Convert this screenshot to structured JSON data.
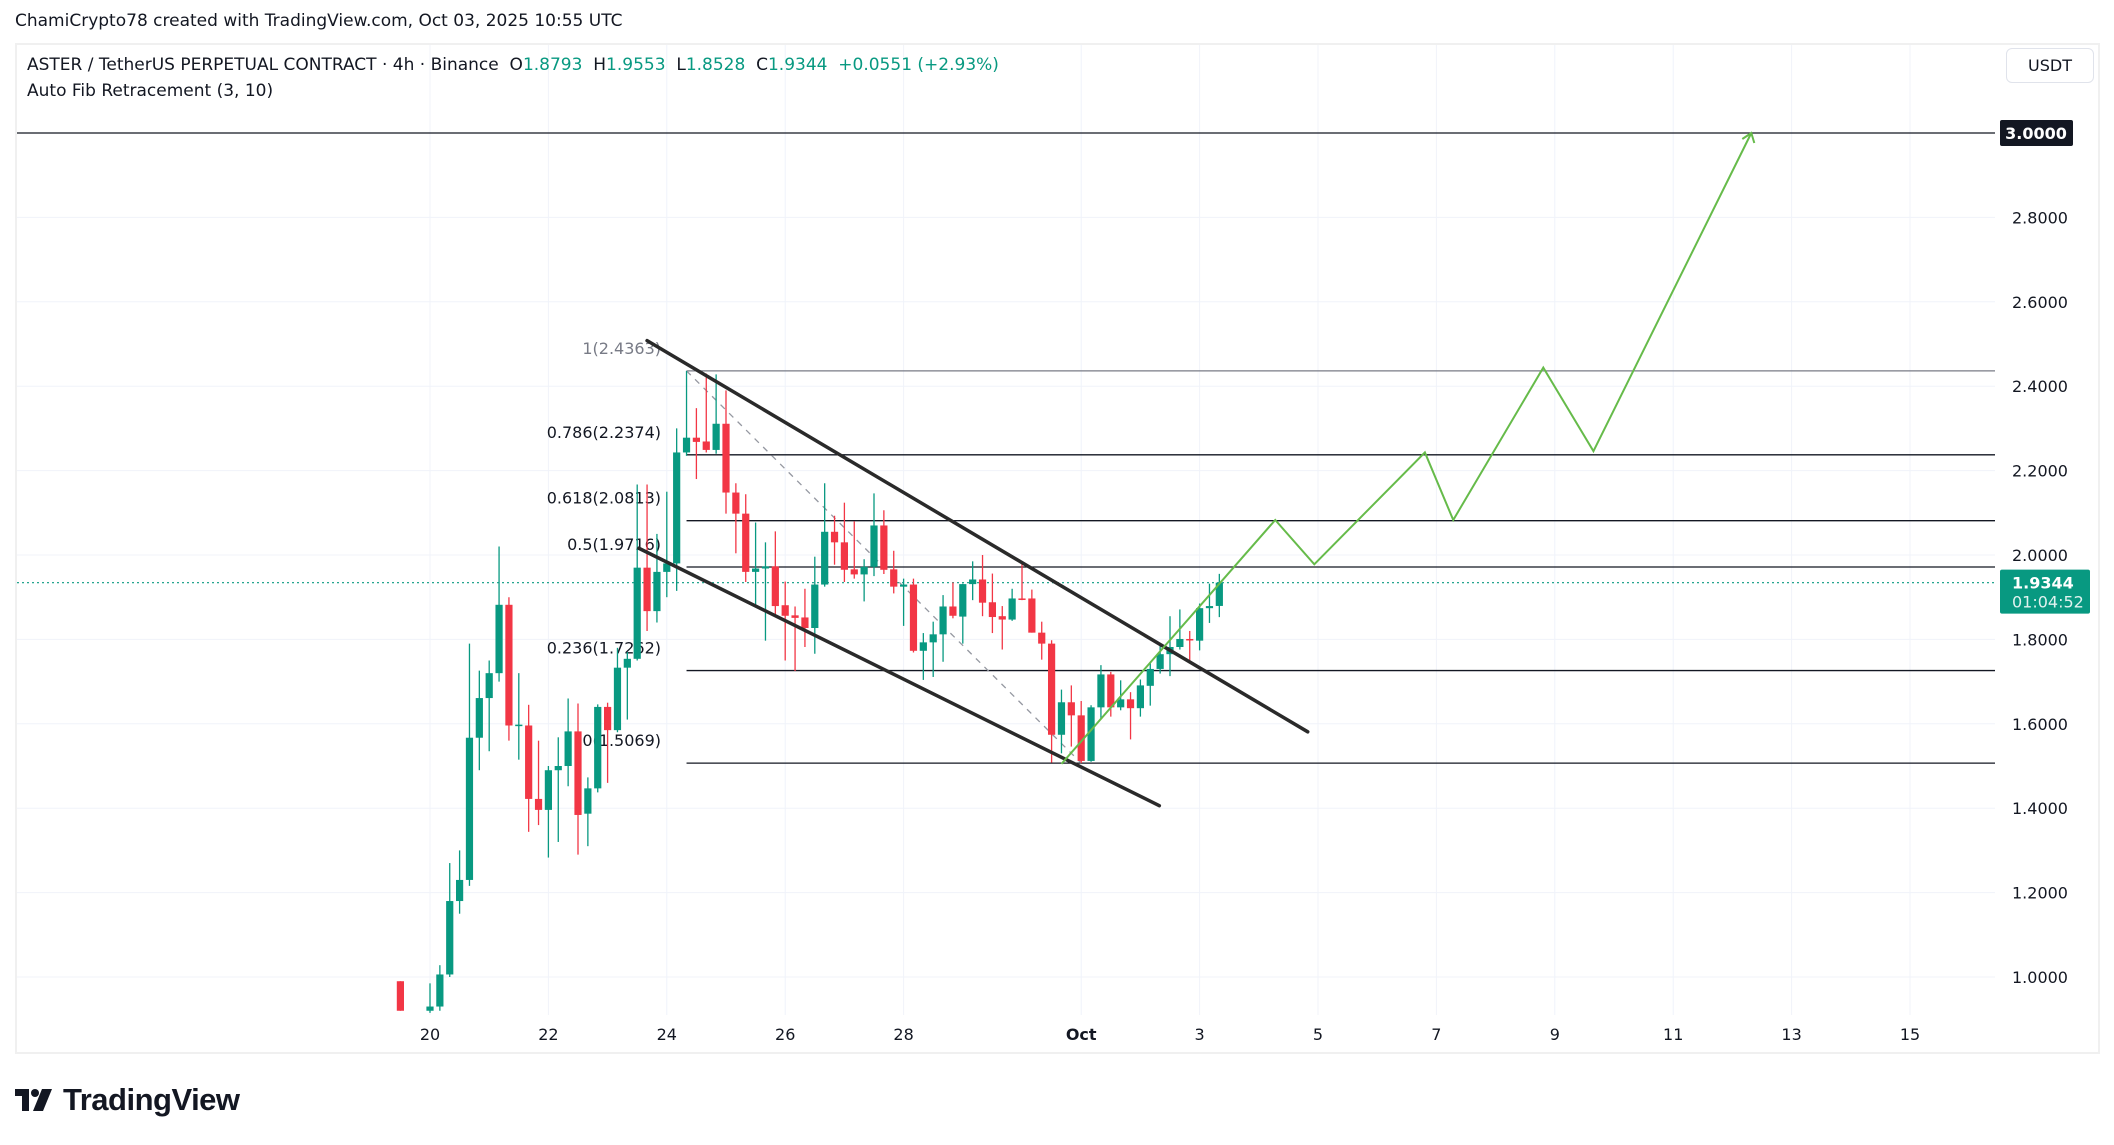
{
  "credit": "ChamiCrypto78 created with TradingView.com, Oct 03, 2025 10:55 UTC",
  "legend": {
    "symbol": "ASTER / TetherUS PERPETUAL CONTRACT · 4h · Binance",
    "o_label": "O",
    "o": "1.8793",
    "h_label": "H",
    "h": "1.9553",
    "l_label": "L",
    "l": "1.8528",
    "c_label": "C",
    "c": "1.9344",
    "change": "+0.0551 (+2.93%)",
    "indicator": "Auto Fib Retracement (3, 10)"
  },
  "currency_button": "USDT",
  "logo_text": "TradingView",
  "colors": {
    "up": "#089981",
    "down": "#f23645",
    "projection": "#66bb4a",
    "channel": "#2a2a2a",
    "fib": "#131722",
    "fib_top": "#787b86"
  },
  "chart_data": {
    "type": "candlestick",
    "price_axis": {
      "min": 0.82,
      "max": 3.1,
      "ticks": [
        "1.0000",
        "1.2000",
        "1.4000",
        "1.6000",
        "1.8000",
        "2.0000",
        "2.2000",
        "2.4000",
        "2.6000",
        "2.8000"
      ],
      "grid": true
    },
    "time_axis": {
      "ticks": [
        {
          "label": "20",
          "date": "2025-09-20 00:00"
        },
        {
          "label": "22",
          "date": "2025-09-22 00:00"
        },
        {
          "label": "24",
          "date": "2025-09-24 00:00"
        },
        {
          "label": "26",
          "date": "2025-09-26 00:00"
        },
        {
          "label": "28",
          "date": "2025-09-28 00:00"
        },
        {
          "label": "Oct",
          "date": "2025-10-01 00:00"
        },
        {
          "label": "3",
          "date": "2025-10-03 00:00"
        },
        {
          "label": "5",
          "date": "2025-10-05 00:00"
        },
        {
          "label": "7",
          "date": "2025-10-07 00:00"
        },
        {
          "label": "9",
          "date": "2025-10-09 00:00"
        },
        {
          "label": "11",
          "date": "2025-10-11 00:00"
        },
        {
          "label": "13",
          "date": "2025-10-13 00:00"
        },
        {
          "label": "15",
          "date": "2025-10-15 00:00"
        }
      ]
    },
    "current_price": {
      "value": 1.9344,
      "label": "1.9344",
      "countdown": "01:04:52"
    },
    "target": {
      "value": 3.0,
      "label": "3.0000"
    },
    "fib": {
      "start": "2025-09-24 08:00",
      "levels": [
        {
          "ratio": "1",
          "price": 2.4363,
          "label": "1(2.4363)"
        },
        {
          "ratio": "0.786",
          "price": 2.2374,
          "label": "0.786(2.2374)"
        },
        {
          "ratio": "0.618",
          "price": 2.0813,
          "label": "0.618(2.0813)"
        },
        {
          "ratio": "0.5",
          "price": 1.9716,
          "label": "0.5(1.9716)"
        },
        {
          "ratio": "0.236",
          "price": 1.7262,
          "label": "0.236(1.7262)"
        },
        {
          "ratio": "0",
          "price": 1.5069,
          "label": "0(1.5069)"
        }
      ],
      "trend_line": [
        [
          "2025-09-24 08:00",
          2.4363
        ],
        [
          "2025-10-01 00:00",
          1.5069
        ]
      ]
    },
    "channel_upper": [
      [
        "2025-09-23 16:00",
        2.508
      ],
      [
        "2025-10-04 19:50",
        1.581
      ]
    ],
    "channel_lower": [
      [
        "2025-09-23 12:40",
        2.016
      ],
      [
        "2025-10-02 07:40",
        1.406
      ]
    ],
    "projection": [
      [
        "2025-09-30 16:00",
        1.505
      ],
      [
        "2025-10-04 06:40",
        2.083
      ],
      [
        "2025-10-04 22:30",
        1.978
      ],
      [
        "2025-10-06 19:20",
        2.243
      ],
      [
        "2025-10-07 06:50",
        2.083
      ],
      [
        "2025-10-08 19:20",
        2.444
      ],
      [
        "2025-10-09 15:40",
        2.246
      ],
      [
        "2025-10-12 07:40",
        3.0
      ]
    ],
    "candles": [
      [
        "2025-09-19 12:00",
        0.99,
        0.99,
        0.92,
        0.92
      ],
      [
        "2025-09-20 00:00",
        0.92,
        0.985,
        0.915,
        0.93
      ],
      [
        "2025-09-20 04:00",
        0.93,
        1.028,
        0.92,
        1.006
      ],
      [
        "2025-09-20 08:00",
        1.006,
        1.27,
        1.0,
        1.18
      ],
      [
        "2025-09-20 12:00",
        1.18,
        1.3,
        1.15,
        1.23
      ],
      [
        "2025-09-20 16:00",
        1.23,
        1.79,
        1.216,
        1.567
      ],
      [
        "2025-09-20 20:00",
        1.567,
        1.726,
        1.49,
        1.661
      ],
      [
        "2025-09-21 00:00",
        1.661,
        1.75,
        1.535,
        1.72
      ],
      [
        "2025-09-21 04:00",
        1.72,
        2.02,
        1.7,
        1.882
      ],
      [
        "2025-09-21 08:00",
        1.882,
        1.9,
        1.56,
        1.596
      ],
      [
        "2025-09-21 12:00",
        1.596,
        1.72,
        1.515,
        1.598
      ],
      [
        "2025-09-21 16:00",
        1.596,
        1.645,
        1.344,
        1.422
      ],
      [
        "2025-09-21 20:00",
        1.422,
        1.56,
        1.36,
        1.396
      ],
      [
        "2025-09-22 00:00",
        1.396,
        1.5,
        1.283,
        1.49
      ],
      [
        "2025-09-22 04:00",
        1.49,
        1.568,
        1.32,
        1.5
      ],
      [
        "2025-09-22 08:00",
        1.5,
        1.66,
        1.452,
        1.582
      ],
      [
        "2025-09-22 12:00",
        1.582,
        1.648,
        1.29,
        1.384
      ],
      [
        "2025-09-22 16:00",
        1.387,
        1.473,
        1.31,
        1.447
      ],
      [
        "2025-09-22 20:00",
        1.447,
        1.646,
        1.4375,
        1.64
      ],
      [
        "2025-09-23 00:00",
        1.64,
        1.65,
        1.46,
        1.585
      ],
      [
        "2025-09-23 04:00",
        1.585,
        1.78,
        1.58,
        1.733
      ],
      [
        "2025-09-23 08:00",
        1.733,
        1.77,
        1.61,
        1.754
      ],
      [
        "2025-09-23 12:00",
        1.754,
        2.167,
        1.75,
        1.97
      ],
      [
        "2025-09-23 16:00",
        1.97,
        2.167,
        1.82,
        1.867
      ],
      [
        "2025-09-23 20:00",
        1.867,
        2.05,
        1.84,
        1.96
      ],
      [
        "2025-09-24 00:00",
        1.96,
        2.15,
        1.9,
        1.98
      ],
      [
        "2025-09-24 04:00",
        1.98,
        2.3,
        1.915,
        2.243
      ],
      [
        "2025-09-24 08:00",
        2.243,
        2.4363,
        2.235,
        2.278
      ],
      [
        "2025-09-24 12:00",
        2.278,
        2.348,
        2.18,
        2.268
      ],
      [
        "2025-09-24 16:00",
        2.269,
        2.43,
        2.243,
        2.249
      ],
      [
        "2025-09-24 20:00",
        2.249,
        2.428,
        2.24,
        2.311
      ],
      [
        "2025-09-25 00:00",
        2.311,
        2.39,
        2.098,
        2.148
      ],
      [
        "2025-09-25 04:00",
        2.148,
        2.17,
        2.004,
        2.098
      ],
      [
        "2025-09-25 08:00",
        2.098,
        2.144,
        1.936,
        1.96
      ],
      [
        "2025-09-25 12:00",
        1.96,
        2.077,
        1.876,
        1.968
      ],
      [
        "2025-09-25 16:00",
        1.968,
        2.03,
        1.797,
        1.973
      ],
      [
        "2025-09-25 20:00",
        1.973,
        2.056,
        1.856,
        1.879
      ],
      [
        "2025-09-26 00:00",
        1.881,
        1.937,
        1.75,
        1.856
      ],
      [
        "2025-09-26 04:00",
        1.857,
        1.878,
        1.725,
        1.851
      ],
      [
        "2025-09-26 08:00",
        1.852,
        1.92,
        1.782,
        1.827
      ],
      [
        "2025-09-26 12:00",
        1.827,
        1.996,
        1.766,
        1.93
      ],
      [
        "2025-09-26 16:00",
        1.93,
        2.17,
        1.925,
        2.055
      ],
      [
        "2025-09-26 20:00",
        2.055,
        2.093,
        1.977,
        2.03
      ],
      [
        "2025-09-27 00:00",
        2.03,
        2.124,
        1.936,
        1.965
      ],
      [
        "2025-09-27 04:00",
        1.966,
        2.08,
        1.944,
        1.954
      ],
      [
        "2025-09-27 08:00",
        1.954,
        1.99,
        1.89,
        1.972
      ],
      [
        "2025-09-27 12:00",
        1.972,
        2.146,
        1.95,
        2.07
      ],
      [
        "2025-09-27 16:00",
        2.07,
        2.106,
        1.955,
        1.965
      ],
      [
        "2025-09-27 20:00",
        1.966,
        2.01,
        1.909,
        1.925
      ],
      [
        "2025-09-28 00:00",
        1.925,
        1.944,
        1.832,
        1.93
      ],
      [
        "2025-09-28 04:00",
        1.93,
        1.944,
        1.769,
        1.773
      ],
      [
        "2025-09-28 08:00",
        1.773,
        1.815,
        1.704,
        1.793
      ],
      [
        "2025-09-28 12:00",
        1.793,
        1.842,
        1.711,
        1.812
      ],
      [
        "2025-09-28 16:00",
        1.812,
        1.905,
        1.747,
        1.878
      ],
      [
        "2025-09-28 20:00",
        1.878,
        1.935,
        1.85,
        1.856
      ],
      [
        "2025-09-29 00:00",
        1.854,
        1.932,
        1.79,
        1.931
      ],
      [
        "2025-09-29 04:00",
        1.931,
        1.985,
        1.893,
        1.942
      ],
      [
        "2025-09-29 08:00",
        1.942,
        2.0,
        1.855,
        1.887
      ],
      [
        "2025-09-29 12:00",
        1.888,
        1.956,
        1.815,
        1.853
      ],
      [
        "2025-09-29 16:00",
        1.855,
        1.879,
        1.776,
        1.847
      ],
      [
        "2025-09-29 20:00",
        1.847,
        1.92,
        1.844,
        1.897
      ],
      [
        "2025-09-30 00:00",
        1.897,
        1.98,
        1.893,
        1.895
      ],
      [
        "2025-09-30 04:00",
        1.897,
        1.918,
        1.816,
        1.816
      ],
      [
        "2025-09-30 08:00",
        1.816,
        1.842,
        1.752,
        1.79
      ],
      [
        "2025-09-30 12:00",
        1.79,
        1.798,
        1.508,
        1.574
      ],
      [
        "2025-09-30 16:00",
        1.574,
        1.681,
        1.53,
        1.651
      ],
      [
        "2025-09-30 20:00",
        1.651,
        1.691,
        1.546,
        1.62
      ],
      [
        "2025-10-01 00:00",
        1.62,
        1.654,
        1.5069,
        1.512
      ],
      [
        "2025-10-01 04:00",
        1.512,
        1.644,
        1.51,
        1.639
      ],
      [
        "2025-10-01 08:00",
        1.639,
        1.739,
        1.612,
        1.717
      ],
      [
        "2025-10-01 12:00",
        1.717,
        1.723,
        1.617,
        1.639
      ],
      [
        "2025-10-01 16:00",
        1.639,
        1.703,
        1.632,
        1.658
      ],
      [
        "2025-10-01 20:00",
        1.658,
        1.675,
        1.563,
        1.637
      ],
      [
        "2025-10-02 00:00",
        1.637,
        1.705,
        1.617,
        1.691
      ],
      [
        "2025-10-02 04:00",
        1.69,
        1.743,
        1.643,
        1.73
      ],
      [
        "2025-10-02 08:00",
        1.73,
        1.789,
        1.719,
        1.765
      ],
      [
        "2025-10-02 12:00",
        1.765,
        1.855,
        1.713,
        1.782
      ],
      [
        "2025-10-02 16:00",
        1.782,
        1.871,
        1.776,
        1.801
      ],
      [
        "2025-10-02 20:00",
        1.801,
        1.82,
        1.743,
        1.8
      ],
      [
        "2025-10-03 00:00",
        1.797,
        1.885,
        1.774,
        1.874
      ],
      [
        "2025-10-03 04:00",
        1.874,
        1.932,
        1.839,
        1.879
      ],
      [
        "2025-10-03 08:00",
        1.8793,
        1.9553,
        1.8528,
        1.9344
      ]
    ]
  }
}
